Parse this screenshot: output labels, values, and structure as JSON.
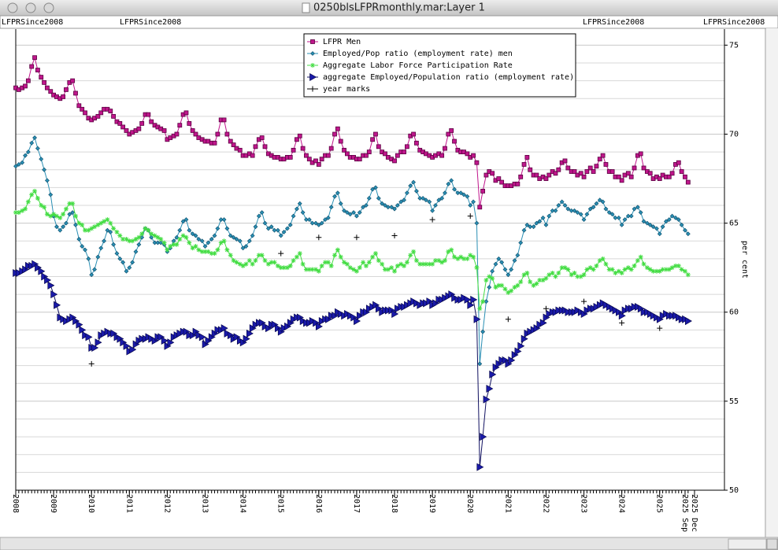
{
  "window_title": "0250blsLFPRmonthly.mar:Layer 1",
  "header_labels": [
    "LFPRSince2008",
    "LFPRSince2008",
    "LFPRSince2008",
    "LFPRSince2008"
  ],
  "chart_data": {
    "type": "line",
    "ylabel": "per cent",
    "legend": "upper center",
    "grid": true,
    "xlim": [
      2008,
      2026.71
    ],
    "ylim": [
      50,
      75.9
    ],
    "yticks": [
      50,
      55,
      60,
      65,
      70,
      75
    ],
    "yminorticks": [
      51,
      52,
      53,
      54,
      56,
      57,
      58,
      59,
      61,
      62,
      63,
      64,
      66,
      67,
      68,
      69,
      71,
      72,
      73,
      74
    ],
    "xticks": [
      2008,
      2009,
      2010,
      2011,
      2012,
      2013,
      2014,
      2015,
      2016,
      2017,
      2018,
      2019,
      2020,
      2021,
      2022,
      2023,
      2024,
      2025,
      {
        "value": 2025.67,
        "label": "2025 Sep"
      },
      {
        "value": 2025.92,
        "label": "2025 Dec"
      }
    ],
    "x": [
      2008,
      2008.08,
      2008.17,
      2008.25,
      2008.33,
      2008.42,
      2008.5,
      2008.58,
      2008.67,
      2008.75,
      2008.83,
      2008.92,
      2009,
      2009.08,
      2009.17,
      2009.25,
      2009.33,
      2009.42,
      2009.5,
      2009.58,
      2009.67,
      2009.75,
      2009.83,
      2009.92,
      2010,
      2010.08,
      2010.17,
      2010.25,
      2010.33,
      2010.42,
      2010.5,
      2010.58,
      2010.67,
      2010.75,
      2010.83,
      2010.92,
      2011,
      2011.08,
      2011.17,
      2011.25,
      2011.33,
      2011.42,
      2011.5,
      2011.58,
      2011.67,
      2011.75,
      2011.83,
      2011.92,
      2012,
      2012.08,
      2012.17,
      2012.25,
      2012.33,
      2012.42,
      2012.5,
      2012.58,
      2012.67,
      2012.75,
      2012.83,
      2012.92,
      2013,
      2013.08,
      2013.17,
      2013.25,
      2013.33,
      2013.42,
      2013.5,
      2013.58,
      2013.67,
      2013.75,
      2013.83,
      2013.92,
      2014,
      2014.08,
      2014.17,
      2014.25,
      2014.33,
      2014.42,
      2014.5,
      2014.58,
      2014.67,
      2014.75,
      2014.83,
      2014.92,
      2015,
      2015.08,
      2015.17,
      2015.25,
      2015.33,
      2015.42,
      2015.5,
      2015.58,
      2015.67,
      2015.75,
      2015.83,
      2015.92,
      2016,
      2016.08,
      2016.17,
      2016.25,
      2016.33,
      2016.42,
      2016.5,
      2016.58,
      2016.67,
      2016.75,
      2016.83,
      2016.92,
      2017,
      2017.08,
      2017.17,
      2017.25,
      2017.33,
      2017.42,
      2017.5,
      2017.58,
      2017.67,
      2017.75,
      2017.83,
      2017.92,
      2018,
      2018.08,
      2018.17,
      2018.25,
      2018.33,
      2018.42,
      2018.5,
      2018.58,
      2018.67,
      2018.75,
      2018.83,
      2018.92,
      2019,
      2019.08,
      2019.17,
      2019.25,
      2019.33,
      2019.42,
      2019.5,
      2019.58,
      2019.67,
      2019.75,
      2019.83,
      2019.92,
      2020,
      2020.08,
      2020.17,
      2020.25,
      2020.33,
      2020.42,
      2020.5,
      2020.58,
      2020.67,
      2020.75,
      2020.83,
      2020.92,
      2021,
      2021.08,
      2021.17,
      2021.25,
      2021.33,
      2021.42,
      2021.5,
      2021.58,
      2021.67,
      2021.75,
      2021.83,
      2021.92,
      2022,
      2022.08,
      2022.17,
      2022.25,
      2022.33,
      2022.42,
      2022.5,
      2022.58,
      2022.67,
      2022.75,
      2022.83,
      2022.92,
      2023,
      2023.08,
      2023.17,
      2023.25,
      2023.33,
      2023.42,
      2023.5,
      2023.58,
      2023.67,
      2023.75,
      2023.83,
      2023.92,
      2024,
      2024.08,
      2024.17,
      2024.25,
      2024.33,
      2024.42,
      2024.5,
      2024.58,
      2024.67,
      2024.75,
      2024.83,
      2024.92,
      2025,
      2025.08,
      2025.17,
      2025.25,
      2025.33,
      2025.42,
      2025.5,
      2025.58,
      2025.67,
      2025.75
    ],
    "series": [
      {
        "name": "LFPR Men",
        "color": "#c0168c",
        "marker": "square",
        "values": [
          72.6,
          72.5,
          72.6,
          72.7,
          73.0,
          73.8,
          74.3,
          73.6,
          73.2,
          72.9,
          72.6,
          72.4,
          72.2,
          72.1,
          72.0,
          72.1,
          72.5,
          72.9,
          73.0,
          72.3,
          71.6,
          71.4,
          71.2,
          70.9,
          70.8,
          70.9,
          71.0,
          71.2,
          71.4,
          71.4,
          71.3,
          71.0,
          70.7,
          70.6,
          70.4,
          70.2,
          70.0,
          70.1,
          70.2,
          70.3,
          70.6,
          71.1,
          71.1,
          70.7,
          70.5,
          70.4,
          70.3,
          70.2,
          69.7,
          69.8,
          69.9,
          70.0,
          70.5,
          71.1,
          71.2,
          70.6,
          70.2,
          70.0,
          69.8,
          69.7,
          69.6,
          69.6,
          69.5,
          69.5,
          70.0,
          70.8,
          70.8,
          70.0,
          69.6,
          69.4,
          69.2,
          69.1,
          68.8,
          68.8,
          68.9,
          68.8,
          69.3,
          69.7,
          69.8,
          69.3,
          68.9,
          68.8,
          68.7,
          68.7,
          68.6,
          68.6,
          68.7,
          68.7,
          69.1,
          69.7,
          69.9,
          69.2,
          68.8,
          68.6,
          68.4,
          68.5,
          68.3,
          68.6,
          68.8,
          68.8,
          69.2,
          70.0,
          70.3,
          69.6,
          69.1,
          68.9,
          68.7,
          68.7,
          68.6,
          68.6,
          68.8,
          68.8,
          69.0,
          69.7,
          70.0,
          69.3,
          69.0,
          68.9,
          68.7,
          68.6,
          68.5,
          68.8,
          69.0,
          69.0,
          69.3,
          69.9,
          70.0,
          69.5,
          69.1,
          69.0,
          68.9,
          68.8,
          68.7,
          68.8,
          68.9,
          68.8,
          69.2,
          70.0,
          70.2,
          69.6,
          69.1,
          69.0,
          69.0,
          68.9,
          68.7,
          68.8,
          68.4,
          65.9,
          66.8,
          67.7,
          67.9,
          67.8,
          67.4,
          67.5,
          67.3,
          67.1,
          67.1,
          67.1,
          67.2,
          67.2,
          67.6,
          68.3,
          68.7,
          68.0,
          67.7,
          67.7,
          67.5,
          67.6,
          67.5,
          67.7,
          67.9,
          67.8,
          68.0,
          68.4,
          68.5,
          68.1,
          67.9,
          67.9,
          67.7,
          67.8,
          67.6,
          67.9,
          68.1,
          67.9,
          68.2,
          68.6,
          68.8,
          68.3,
          67.9,
          67.9,
          67.6,
          67.6,
          67.4,
          67.7,
          67.8,
          67.6,
          68.1,
          68.8,
          68.9,
          68.1,
          67.9,
          67.8,
          67.5,
          67.6,
          67.5,
          67.7,
          67.6,
          67.6,
          67.8,
          68.3,
          68.4,
          67.9,
          67.6,
          67.3
        ]
      },
      {
        "name": "Employed/Pop ratio (employment rate) men",
        "color": "#2a8fb4",
        "marker": "diamond",
        "values": [
          68.2,
          68.3,
          68.4,
          68.8,
          69.0,
          69.5,
          69.8,
          69.2,
          68.6,
          68.0,
          67.4,
          66.6,
          65.4,
          64.8,
          64.6,
          64.8,
          65.0,
          65.5,
          65.6,
          64.9,
          64.1,
          63.7,
          63.5,
          63.0,
          62.1,
          62.4,
          63.1,
          63.6,
          64.0,
          64.6,
          64.5,
          63.8,
          63.3,
          63.0,
          62.8,
          62.3,
          62.5,
          62.8,
          63.4,
          63.8,
          64.2,
          64.7,
          64.6,
          64.2,
          63.9,
          63.9,
          63.9,
          63.8,
          63.4,
          63.6,
          64.0,
          64.2,
          64.6,
          65.1,
          65.2,
          64.6,
          64.4,
          64.3,
          64.1,
          64.0,
          63.7,
          63.9,
          64.1,
          64.3,
          64.7,
          65.2,
          65.2,
          64.7,
          64.3,
          64.2,
          64.1,
          64.0,
          63.6,
          63.7,
          64.0,
          64.3,
          64.8,
          65.4,
          65.6,
          65.0,
          64.7,
          64.8,
          64.6,
          64.6,
          64.3,
          64.5,
          64.7,
          64.9,
          65.4,
          65.8,
          66.1,
          65.6,
          65.2,
          65.2,
          65.0,
          65.0,
          64.9,
          65.0,
          65.2,
          65.3,
          65.9,
          66.5,
          66.7,
          66.1,
          65.7,
          65.6,
          65.5,
          65.6,
          65.4,
          65.6,
          65.9,
          66.0,
          66.4,
          66.9,
          67.0,
          66.4,
          66.1,
          66.0,
          65.9,
          65.9,
          65.8,
          66.0,
          66.2,
          66.3,
          66.7,
          67.1,
          67.3,
          66.8,
          66.4,
          66.4,
          66.3,
          66.2,
          65.7,
          66.0,
          66.3,
          66.4,
          66.7,
          67.2,
          67.4,
          66.9,
          66.7,
          66.7,
          66.6,
          66.5,
          66.0,
          66.2,
          65.0,
          57.1,
          58.9,
          60.6,
          61.4,
          62.3,
          62.7,
          63.0,
          62.8,
          62.4,
          62.1,
          62.4,
          62.9,
          63.2,
          63.9,
          64.6,
          64.9,
          64.8,
          64.8,
          65.0,
          65.1,
          65.3,
          64.9,
          65.4,
          65.7,
          65.7,
          66.0,
          66.2,
          66.0,
          65.8,
          65.7,
          65.7,
          65.6,
          65.5,
          65.2,
          65.5,
          65.8,
          65.9,
          66.1,
          66.3,
          66.2,
          65.8,
          65.6,
          65.5,
          65.3,
          65.3,
          64.9,
          65.2,
          65.4,
          65.4,
          65.8,
          65.9,
          65.6,
          65.1,
          65.0,
          64.9,
          64.8,
          64.7,
          64.4,
          64.8,
          65.1,
          65.2,
          65.4,
          65.3,
          65.2,
          64.9,
          64.6,
          64.4
        ]
      },
      {
        "name": "Aggregate Labor Force Participation Rate",
        "color": "#44dd44",
        "marker": "star",
        "values": [
          65.6,
          65.6,
          65.7,
          65.8,
          66.2,
          66.6,
          66.8,
          66.4,
          66.0,
          65.9,
          65.5,
          65.4,
          65.5,
          65.4,
          65.3,
          65.5,
          65.8,
          66.1,
          66.1,
          65.4,
          65.0,
          64.9,
          64.6,
          64.6,
          64.7,
          64.8,
          64.9,
          65.0,
          65.1,
          65.2,
          65.0,
          64.7,
          64.5,
          64.3,
          64.1,
          64.1,
          64.0,
          64.0,
          64.1,
          64.2,
          64.4,
          64.7,
          64.6,
          64.4,
          64.3,
          64.2,
          64.1,
          63.9,
          63.5,
          63.7,
          63.8,
          63.8,
          64.1,
          64.3,
          64.2,
          63.9,
          63.6,
          63.7,
          63.5,
          63.4,
          63.4,
          63.4,
          63.3,
          63.3,
          63.5,
          63.9,
          64.0,
          63.5,
          63.2,
          62.9,
          62.8,
          62.7,
          62.6,
          62.7,
          62.9,
          62.7,
          62.9,
          63.2,
          63.2,
          62.9,
          62.7,
          62.8,
          62.8,
          62.6,
          62.5,
          62.5,
          62.5,
          62.6,
          62.9,
          63.1,
          63.3,
          62.7,
          62.4,
          62.4,
          62.4,
          62.4,
          62.3,
          62.6,
          62.8,
          62.8,
          62.6,
          63.2,
          63.5,
          63.1,
          62.8,
          62.7,
          62.5,
          62.4,
          62.3,
          62.5,
          62.8,
          62.6,
          62.8,
          63.1,
          63.3,
          62.9,
          62.7,
          62.4,
          62.4,
          62.5,
          62.3,
          62.6,
          62.7,
          62.6,
          62.8,
          63.2,
          63.4,
          62.9,
          62.7,
          62.7,
          62.7,
          62.7,
          62.7,
          62.9,
          62.9,
          62.8,
          62.9,
          63.4,
          63.5,
          63.1,
          63.0,
          63.1,
          63.0,
          63.0,
          63.2,
          63.1,
          62.5,
          60.2,
          60.6,
          61.8,
          62.0,
          61.9,
          61.4,
          61.5,
          61.5,
          61.3,
          61.1,
          61.2,
          61.4,
          61.5,
          61.7,
          62.1,
          62.2,
          61.7,
          61.5,
          61.6,
          61.8,
          61.8,
          61.9,
          62.1,
          62.2,
          62.0,
          62.2,
          62.5,
          62.5,
          62.4,
          62.1,
          62.2,
          62.0,
          62.0,
          62.1,
          62.4,
          62.5,
          62.4,
          62.6,
          62.9,
          63.0,
          62.7,
          62.4,
          62.4,
          62.2,
          62.3,
          62.2,
          62.4,
          62.5,
          62.4,
          62.6,
          62.9,
          63.1,
          62.7,
          62.5,
          62.4,
          62.3,
          62.3,
          62.3,
          62.4,
          62.4,
          62.4,
          62.5,
          62.6,
          62.6,
          62.4,
          62.3,
          62.1
        ]
      },
      {
        "name": "aggregate Employed/Population ratio (employment rate)",
        "color": "#1a1aa8",
        "marker": "triangle",
        "values": [
          62.2,
          62.2,
          62.3,
          62.4,
          62.6,
          62.6,
          62.7,
          62.5,
          62.3,
          62.0,
          61.8,
          61.5,
          61.0,
          60.4,
          59.7,
          59.6,
          59.5,
          59.6,
          59.7,
          59.5,
          59.3,
          59.0,
          58.7,
          58.6,
          58.0,
          58.0,
          58.3,
          58.7,
          58.8,
          58.9,
          58.8,
          58.8,
          58.6,
          58.5,
          58.3,
          58.1,
          57.8,
          57.9,
          58.2,
          58.4,
          58.5,
          58.5,
          58.6,
          58.5,
          58.4,
          58.6,
          58.6,
          58.4,
          58.1,
          58.3,
          58.6,
          58.7,
          58.8,
          58.9,
          58.9,
          58.7,
          58.7,
          58.9,
          58.7,
          58.6,
          58.2,
          58.4,
          58.6,
          58.8,
          59.0,
          59.0,
          59.1,
          58.8,
          58.7,
          58.5,
          58.6,
          58.4,
          58.3,
          58.5,
          58.8,
          59.1,
          59.3,
          59.4,
          59.4,
          59.2,
          59.1,
          59.3,
          59.3,
          59.1,
          58.9,
          59.1,
          59.2,
          59.4,
          59.6,
          59.7,
          59.7,
          59.5,
          59.4,
          59.4,
          59.5,
          59.4,
          59.2,
          59.5,
          59.6,
          59.6,
          59.8,
          59.8,
          60.0,
          59.9,
          59.8,
          59.9,
          59.8,
          59.7,
          59.5,
          59.8,
          60.0,
          60.0,
          60.2,
          60.3,
          60.4,
          60.2,
          60.0,
          60.1,
          60.1,
          60.1,
          59.9,
          60.2,
          60.3,
          60.3,
          60.4,
          60.5,
          60.6,
          60.5,
          60.4,
          60.5,
          60.5,
          60.6,
          60.4,
          60.5,
          60.7,
          60.7,
          60.8,
          60.9,
          61.0,
          60.8,
          60.7,
          60.7,
          60.8,
          60.7,
          60.4,
          60.7,
          59.6,
          51.3,
          53.0,
          55.1,
          55.7,
          56.5,
          56.9,
          57.1,
          57.3,
          57.3,
          57.1,
          57.3,
          57.6,
          57.8,
          58.1,
          58.5,
          58.8,
          58.9,
          59.0,
          59.1,
          59.3,
          59.4,
          59.7,
          59.9,
          60.0,
          60.0,
          60.1,
          60.1,
          60.1,
          60.0,
          60.0,
          60.0,
          60.1,
          60.0,
          59.9,
          60.1,
          60.2,
          60.2,
          60.3,
          60.4,
          60.5,
          60.4,
          60.3,
          60.2,
          60.1,
          60.0,
          59.8,
          60.1,
          60.2,
          60.2,
          60.3,
          60.3,
          60.2,
          60.0,
          60.0,
          59.9,
          59.8,
          59.7,
          59.6,
          59.8,
          59.9,
          59.8,
          59.8,
          59.8,
          59.7,
          59.6,
          59.6,
          59.5
        ]
      },
      {
        "name": "year marks",
        "color": "#000000",
        "marker": "plus",
        "line": false,
        "x": [
          2010,
          2015,
          2016,
          2017,
          2018,
          2019,
          2020,
          2021,
          2022,
          2023,
          2024,
          2025
        ],
        "values": [
          57.1,
          63.3,
          64.2,
          64.2,
          64.3,
          65.2,
          65.4,
          59.6,
          60.2,
          60.6,
          59.4,
          59.1
        ]
      }
    ]
  }
}
